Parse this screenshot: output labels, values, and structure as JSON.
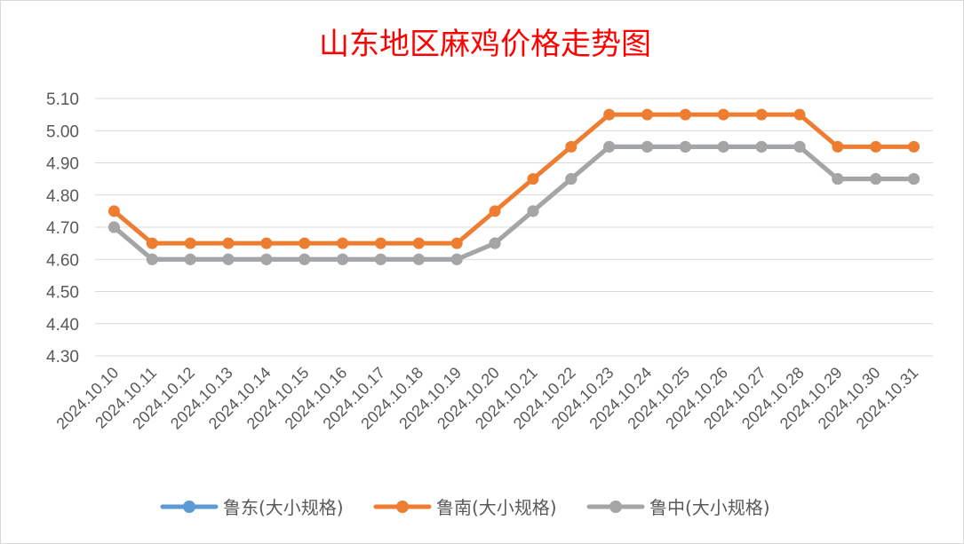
{
  "colors": {
    "title": "#ff0000",
    "grid": "#d9d9d9",
    "axis_text": "#595959"
  },
  "chart_data": {
    "type": "line",
    "title": "山东地区麻鸡价格走势图",
    "xlabel": "",
    "ylabel": "",
    "ylim": [
      4.3,
      5.1
    ],
    "yticks": [
      "5.10",
      "5.00",
      "4.90",
      "4.80",
      "4.70",
      "4.60",
      "4.50",
      "4.40",
      "4.30"
    ],
    "grid": true,
    "legend_position": "bottom",
    "x": [
      "2024.10.10",
      "2024.10.11",
      "2024.10.12",
      "2024.10.13",
      "2024.10.14",
      "2024.10.15",
      "2024.10.16",
      "2024.10.17",
      "2024.10.18",
      "2024.10.19",
      "2024.10.20",
      "2024.10.21",
      "2024.10.22",
      "2024.10.23",
      "2024.10.24",
      "2024.10.25",
      "2024.10.26",
      "2024.10.27",
      "2024.10.28",
      "2024.10.29",
      "2024.10.30",
      "2024.10.31"
    ],
    "series": [
      {
        "name": "鲁东(大小规格)",
        "color": "#5b9bd5",
        "values": [
          4.7,
          4.6,
          4.6,
          4.6,
          4.6,
          4.6,
          4.6,
          4.6,
          4.6,
          4.6,
          4.65,
          4.75,
          4.85,
          4.95,
          4.95,
          4.95,
          4.95,
          4.95,
          4.95,
          4.85,
          4.85,
          4.85
        ]
      },
      {
        "name": "鲁南(大小规格)",
        "color": "#ed7d31",
        "values": [
          4.75,
          4.65,
          4.65,
          4.65,
          4.65,
          4.65,
          4.65,
          4.65,
          4.65,
          4.65,
          4.75,
          4.85,
          4.95,
          5.05,
          5.05,
          5.05,
          5.05,
          5.05,
          5.05,
          4.95,
          4.95,
          4.95
        ]
      },
      {
        "name": "鲁中(大小规格)",
        "color": "#a5a5a5",
        "values": [
          4.7,
          4.6,
          4.6,
          4.6,
          4.6,
          4.6,
          4.6,
          4.6,
          4.6,
          4.6,
          4.65,
          4.75,
          4.85,
          4.95,
          4.95,
          4.95,
          4.95,
          4.95,
          4.95,
          4.85,
          4.85,
          4.85
        ]
      }
    ]
  }
}
